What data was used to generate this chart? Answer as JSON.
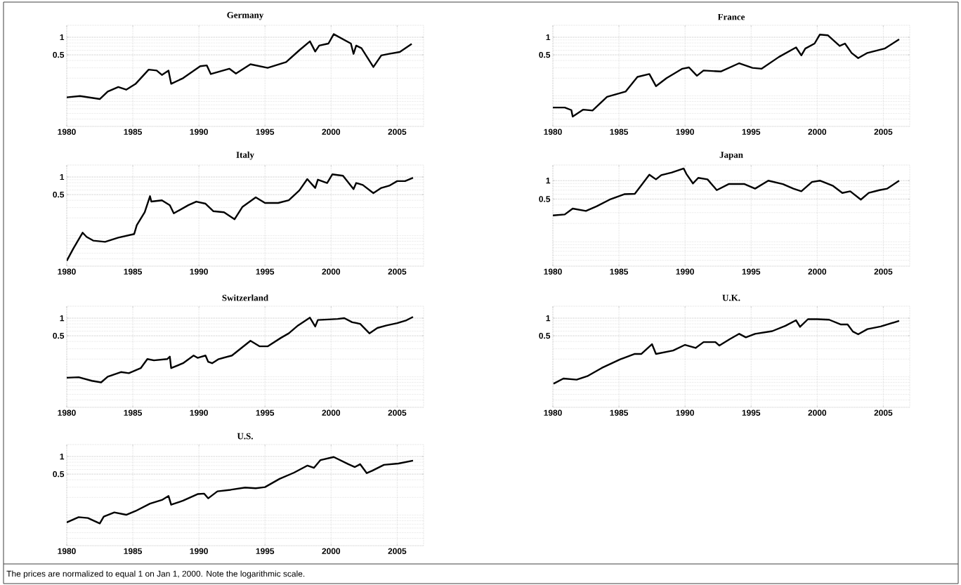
{
  "chart_data": [
    {
      "type": "line",
      "title": "Germany",
      "color": "#000000",
      "log": true,
      "grid": true,
      "xlim": [
        1980,
        2007
      ],
      "xticks": [
        1980,
        1985,
        1990,
        1995,
        2000,
        2005
      ],
      "ylim": [
        0.03,
        1.6
      ],
      "yticks": [
        0.5,
        1
      ],
      "x": [
        1980.0,
        1981.0,
        1982.5,
        1983.1,
        1983.9,
        1984.5,
        1985.2,
        1986.2,
        1986.8,
        1987.2,
        1987.7,
        1987.9,
        1988.8,
        1990.1,
        1990.6,
        1990.9,
        1992.3,
        1992.8,
        1993.9,
        1995.2,
        1996.6,
        1997.6,
        1998.4,
        1998.8,
        1999.1,
        1999.8,
        2000.2,
        2001.5,
        2001.7,
        2001.9,
        2002.3,
        2003.2,
        2003.8,
        2004.4,
        2005.2,
        2006.1
      ],
      "values": [
        0.094,
        0.099,
        0.088,
        0.118,
        0.141,
        0.127,
        0.159,
        0.28,
        0.27,
        0.227,
        0.27,
        0.16,
        0.2,
        0.32,
        0.33,
        0.235,
        0.29,
        0.24,
        0.345,
        0.3,
        0.376,
        0.6,
        0.85,
        0.57,
        0.72,
        0.78,
        1.13,
        0.78,
        0.52,
        0.72,
        0.65,
        0.31,
        0.49,
        0.52,
        0.56,
        0.77
      ]
    },
    {
      "type": "line",
      "title": "France",
      "color": "#000000",
      "log": true,
      "grid": true,
      "xlim": [
        1980,
        2007
      ],
      "xticks": [
        1980,
        1985,
        1990,
        1995,
        2000,
        2005
      ],
      "ylim": [
        0.03,
        1.6
      ],
      "yticks": [
        0.5,
        1
      ],
      "x": [
        1980.0,
        1980.9,
        1981.4,
        1981.5,
        1982.3,
        1983.0,
        1984.1,
        1985.5,
        1986.4,
        1987.3,
        1987.8,
        1988.6,
        1989.8,
        1990.3,
        1990.9,
        1991.4,
        1992.7,
        1994.1,
        1995.1,
        1995.8,
        1997.1,
        1998.4,
        1998.8,
        1999.1,
        1999.8,
        2000.2,
        2000.8,
        2001.7,
        2002.1,
        2002.6,
        2003.1,
        2003.8,
        2005.1,
        2006.2
      ],
      "values": [
        0.063,
        0.063,
        0.057,
        0.044,
        0.058,
        0.056,
        0.096,
        0.118,
        0.21,
        0.235,
        0.146,
        0.2,
        0.29,
        0.305,
        0.22,
        0.27,
        0.26,
        0.36,
        0.3,
        0.29,
        0.46,
        0.67,
        0.49,
        0.64,
        0.78,
        1.11,
        1.08,
        0.71,
        0.78,
        0.54,
        0.44,
        0.54,
        0.64,
        0.92
      ]
    },
    {
      "type": "line",
      "title": "Italy",
      "color": "#000000",
      "log": true,
      "grid": true,
      "xlim": [
        1980,
        2007
      ],
      "xticks": [
        1980,
        1985,
        1990,
        1995,
        2000,
        2005
      ],
      "ylim": [
        0.03,
        1.6
      ],
      "yticks": [
        0.5,
        1
      ],
      "x": [
        1980.0,
        1980.5,
        1981.2,
        1981.5,
        1982.0,
        1982.9,
        1983.9,
        1985.1,
        1985.3,
        1985.9,
        1986.3,
        1986.4,
        1987.2,
        1987.8,
        1988.1,
        1989.2,
        1989.8,
        1990.5,
        1991.1,
        1991.9,
        1992.7,
        1993.3,
        1994.3,
        1995.0,
        1996.0,
        1996.8,
        1997.6,
        1998.2,
        1998.8,
        1999.0,
        1999.7,
        2000.1,
        2000.9,
        2001.7,
        2001.9,
        2002.4,
        2003.2,
        2003.8,
        2004.4,
        2005.0,
        2005.6,
        2006.2
      ],
      "values": [
        0.037,
        0.06,
        0.112,
        0.095,
        0.082,
        0.078,
        0.092,
        0.106,
        0.15,
        0.25,
        0.47,
        0.38,
        0.4,
        0.33,
        0.24,
        0.33,
        0.38,
        0.35,
        0.26,
        0.25,
        0.19,
        0.31,
        0.45,
        0.36,
        0.36,
        0.4,
        0.59,
        0.92,
        0.65,
        0.9,
        0.79,
        1.11,
        1.05,
        0.62,
        0.79,
        0.73,
        0.53,
        0.65,
        0.71,
        0.85,
        0.85,
        0.97
      ]
    },
    {
      "type": "line",
      "title": "Japan",
      "color": "#000000",
      "log": true,
      "grid": true,
      "xlim": [
        1980,
        2007
      ],
      "xticks": [
        1980,
        1985,
        1990,
        1995,
        2000,
        2005
      ],
      "ylim": [
        0.04,
        1.8
      ],
      "yticks": [
        0.5,
        1
      ],
      "x": [
        1980.0,
        1980.9,
        1981.5,
        1982.5,
        1983.3,
        1984.3,
        1985.4,
        1986.2,
        1987.3,
        1987.8,
        1988.2,
        1989.0,
        1989.9,
        1990.1,
        1990.6,
        1991.0,
        1991.7,
        1992.4,
        1993.3,
        1994.5,
        1995.3,
        1996.3,
        1997.4,
        1998.2,
        1998.8,
        1999.6,
        2000.2,
        2001.2,
        2001.9,
        2002.5,
        2003.3,
        2003.9,
        2004.7,
        2005.3,
        2006.2
      ],
      "values": [
        0.27,
        0.28,
        0.35,
        0.32,
        0.38,
        0.49,
        0.6,
        0.61,
        1.25,
        1.05,
        1.23,
        1.36,
        1.58,
        1.29,
        0.9,
        1.11,
        1.05,
        0.7,
        0.88,
        0.88,
        0.74,
        1.0,
        0.88,
        0.74,
        0.67,
        0.95,
        1.0,
        0.82,
        0.63,
        0.67,
        0.49,
        0.63,
        0.7,
        0.74,
        1.0
      ]
    },
    {
      "type": "line",
      "title": "Switzerland",
      "color": "#000000",
      "log": true,
      "grid": true,
      "xlim": [
        1980,
        2007
      ],
      "xticks": [
        1980,
        1985,
        1990,
        1995,
        2000,
        2005
      ],
      "ylim": [
        0.03,
        1.6
      ],
      "yticks": [
        0.5,
        1
      ],
      "x": [
        1980.0,
        1980.9,
        1981.9,
        1982.6,
        1983.1,
        1984.1,
        1984.7,
        1985.6,
        1986.1,
        1986.6,
        1987.6,
        1987.8,
        1987.9,
        1988.8,
        1989.6,
        1989.9,
        1990.5,
        1990.7,
        1991.0,
        1991.5,
        1992.5,
        1993.3,
        1993.9,
        1994.6,
        1995.2,
        1996.2,
        1996.8,
        1997.5,
        1998.4,
        1998.8,
        1999.0,
        1999.8,
        2000.5,
        2001.0,
        2001.6,
        2002.2,
        2002.9,
        2003.5,
        2004.2,
        2005.0,
        2005.7,
        2006.2
      ],
      "values": [
        0.096,
        0.098,
        0.085,
        0.08,
        0.1,
        0.12,
        0.115,
        0.14,
        0.2,
        0.19,
        0.2,
        0.22,
        0.14,
        0.17,
        0.23,
        0.21,
        0.23,
        0.18,
        0.17,
        0.2,
        0.23,
        0.32,
        0.41,
        0.33,
        0.33,
        0.46,
        0.55,
        0.75,
        1.02,
        0.72,
        0.93,
        0.95,
        0.97,
        1.0,
        0.85,
        0.8,
        0.55,
        0.68,
        0.75,
        0.82,
        0.92,
        1.05
      ]
    },
    {
      "type": "line",
      "title": "U.K.",
      "color": "#000000",
      "log": true,
      "grid": true,
      "xlim": [
        1980,
        2007
      ],
      "xticks": [
        1980,
        1985,
        1990,
        1995,
        2000,
        2005
      ],
      "ylim": [
        0.03,
        1.6
      ],
      "yticks": [
        0.5,
        1
      ],
      "x": [
        1980.05,
        1980.8,
        1981.8,
        1982.6,
        1983.7,
        1985.1,
        1986.2,
        1986.7,
        1987.5,
        1987.8,
        1989.1,
        1990.0,
        1990.8,
        1991.4,
        1992.3,
        1992.6,
        1993.4,
        1994.1,
        1994.6,
        1995.3,
        1996.6,
        1997.6,
        1998.4,
        1998.7,
        1999.3,
        2000.0,
        2000.9,
        2001.8,
        2002.3,
        2002.7,
        2003.1,
        2003.8,
        2004.8,
        2006.2
      ],
      "values": [
        0.076,
        0.093,
        0.089,
        0.102,
        0.141,
        0.198,
        0.245,
        0.245,
        0.36,
        0.245,
        0.28,
        0.35,
        0.31,
        0.39,
        0.39,
        0.34,
        0.44,
        0.54,
        0.47,
        0.54,
        0.6,
        0.74,
        0.92,
        0.71,
        0.96,
        0.96,
        0.94,
        0.78,
        0.78,
        0.59,
        0.53,
        0.65,
        0.72,
        0.9
      ]
    },
    {
      "type": "line",
      "title": "U.S.",
      "color": "#000000",
      "log": true,
      "grid": true,
      "xlim": [
        1980,
        2007
      ],
      "xticks": [
        1980,
        1985,
        1990,
        1995,
        2000,
        2005
      ],
      "ylim": [
        0.03,
        1.6
      ],
      "yticks": [
        0.5,
        1
      ],
      "x": [
        1980.0,
        1980.9,
        1981.6,
        1982.5,
        1982.8,
        1983.6,
        1984.5,
        1985.2,
        1986.3,
        1987.2,
        1987.7,
        1987.9,
        1988.8,
        1989.9,
        1990.4,
        1990.7,
        1991.4,
        1992.4,
        1993.5,
        1994.3,
        1995.0,
        1996.1,
        1997.2,
        1998.2,
        1998.7,
        1999.2,
        2000.2,
        2001.3,
        2001.8,
        2002.2,
        2002.7,
        2003.1,
        2004.0,
        2005.1,
        2006.2
      ],
      "values": [
        0.075,
        0.092,
        0.089,
        0.072,
        0.094,
        0.111,
        0.101,
        0.117,
        0.157,
        0.181,
        0.212,
        0.15,
        0.176,
        0.228,
        0.232,
        0.193,
        0.254,
        0.27,
        0.295,
        0.287,
        0.3,
        0.415,
        0.53,
        0.7,
        0.64,
        0.87,
        0.98,
        0.74,
        0.66,
        0.74,
        0.52,
        0.57,
        0.72,
        0.76,
        0.85
      ],
      "annotations": [
        "The prices are normalized to equal 1 on Jan 1, 2000. Note the logarithmic scale."
      ]
    }
  ]
}
